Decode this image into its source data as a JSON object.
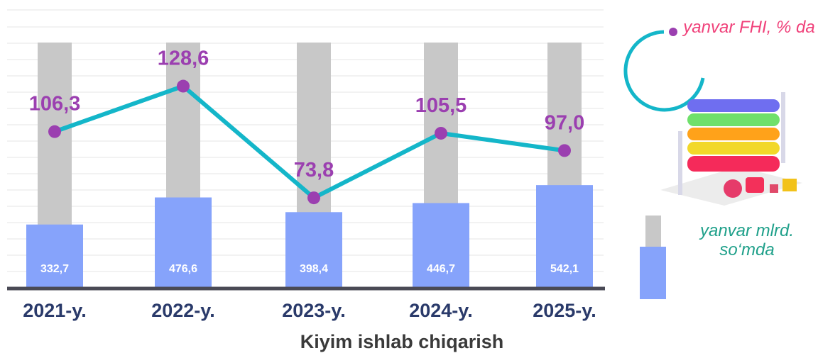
{
  "chart_data": {
    "type": "bar_line",
    "title": "Kiyim ishlab chiqarish",
    "categories": [
      "2021-y.",
      "2022-y.",
      "2023-y.",
      "2024-y.",
      "2025-y."
    ],
    "ylim": [
      0,
      1300
    ],
    "y2lim": [
      30,
      150
    ],
    "series": [
      {
        "name": "yanvar mlrd. so‘mda",
        "type": "bar",
        "color": "#86a3fb",
        "values": [
          332.7,
          476.6,
          398.4,
          446.7,
          542.1
        ],
        "value_labels": [
          "332,7",
          "476,6",
          "398,4",
          "446,7",
          "542,1"
        ]
      },
      {
        "name": "yanvar FHI, % da",
        "type": "line",
        "axis": "y2",
        "color": "#14b6c9",
        "marker_color": "#9b3fb0",
        "values": [
          106.3,
          128.6,
          73.8,
          105.5,
          97.0
        ],
        "value_labels": [
          "106,3",
          "128,6",
          "73,8",
          "105,5",
          "97,0"
        ]
      }
    ]
  }
}
